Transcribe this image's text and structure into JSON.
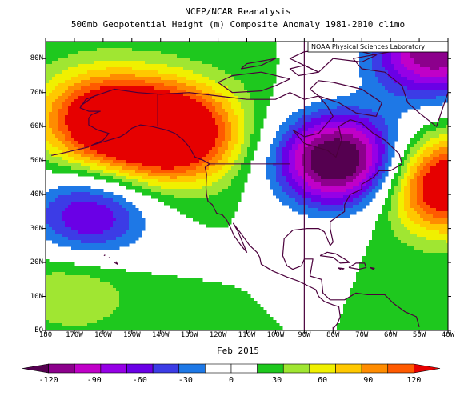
{
  "title_line1": "NCEP/NCAR Reanalysis",
  "title_line2": "500mb Geopotential Height (m) Composite Anomaly 1981-2010 climo",
  "credit": "NOAA Physical Sciences Laboratory",
  "period_label": "Feb 2015",
  "lat_labels": [
    {
      "text": "80N",
      "lat": 80
    },
    {
      "text": "70N",
      "lat": 70
    },
    {
      "text": "60N",
      "lat": 60
    },
    {
      "text": "50N",
      "lat": 50
    },
    {
      "text": "40N",
      "lat": 40
    },
    {
      "text": "30N",
      "lat": 30
    },
    {
      "text": "20N",
      "lat": 20
    },
    {
      "text": "10N",
      "lat": 10
    },
    {
      "text": "EQ",
      "lat": 0
    }
  ],
  "lon_labels": [
    {
      "text": "180",
      "lon": -180
    },
    {
      "text": "170W",
      "lon": -170
    },
    {
      "text": "160W",
      "lon": -160
    },
    {
      "text": "150W",
      "lon": -150
    },
    {
      "text": "140W",
      "lon": -140
    },
    {
      "text": "130W",
      "lon": -130
    },
    {
      "text": "120W",
      "lon": -120
    },
    {
      "text": "110W",
      "lon": -110
    },
    {
      "text": "100W",
      "lon": -100
    },
    {
      "text": "90W",
      "lon": -90
    },
    {
      "text": "80W",
      "lon": -80
    },
    {
      "text": "70W",
      "lon": -70
    },
    {
      "text": "60W",
      "lon": -60
    },
    {
      "text": "50W",
      "lon": -50
    },
    {
      "text": "40W",
      "lon": -40
    }
  ],
  "colorbar": {
    "colors": [
      "#550050",
      "#8c008c",
      "#c000c8",
      "#9600e6",
      "#6a00e6",
      "#3c3ce6",
      "#1e78e6",
      "#ffffff",
      "#ffffff",
      "#1ec81e",
      "#a0e632",
      "#f0f000",
      "#ffc800",
      "#ff8c00",
      "#ff5a00",
      "#e60000"
    ],
    "labels": [
      {
        "text": "-120",
        "value": -120
      },
      {
        "text": "-90",
        "value": -90
      },
      {
        "text": "-60",
        "value": -60
      },
      {
        "text": "-30",
        "value": -30
      },
      {
        "text": "0",
        "value": 0
      },
      {
        "text": "30",
        "value": 30
      },
      {
        "text": "60",
        "value": 60
      },
      {
        "text": "90",
        "value": 90
      },
      {
        "text": "120",
        "value": 120
      }
    ]
  },
  "anomaly_centers": [
    {
      "name": "west-north-america-ridge",
      "lon": -135,
      "lat": 58,
      "value": 140
    },
    {
      "name": "alaska-ridge",
      "lon": -160,
      "lat": 62,
      "value": 120
    },
    {
      "name": "east-north-america-trough",
      "lon": -78,
      "lat": 50,
      "value": -150
    },
    {
      "name": "arctic-trough",
      "lon": -45,
      "lat": 82,
      "value": -120
    },
    {
      "name": "pacific-cutoff-low",
      "lon": -165,
      "lat": 33,
      "value": -80
    },
    {
      "name": "atlantic-ridge",
      "lon": -40,
      "lat": 43,
      "value": 130
    },
    {
      "name": "tropical-pacific-ridge",
      "lon": -170,
      "lat": 14,
      "value": 35
    }
  ]
}
